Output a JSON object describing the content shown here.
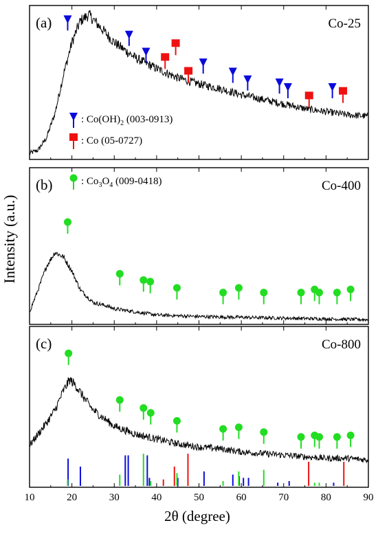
{
  "chart_data": {
    "type": "line",
    "xlabel": "2θ (degree)",
    "ylabel": "Intensity (a.u.)",
    "xlim": [
      10,
      90
    ],
    "x_ticks": [
      10,
      20,
      30,
      40,
      50,
      60,
      70,
      80,
      90
    ],
    "colors": {
      "CoOH2": "#0a0adc",
      "Co": "#ee1111",
      "Co3O4": "#22dd22",
      "trace": "#000000"
    },
    "panels": [
      {
        "label": "(a)",
        "sample": "Co-25",
        "series": [
          {
            "x": [
              10,
              12,
              14,
              16,
              18,
              20,
              22,
              24,
              26,
              30,
              35,
              40,
              45,
              50,
              55,
              60,
              65,
              70,
              75,
              80,
              85,
              90
            ],
            "y": [
              0.04,
              0.06,
              0.14,
              0.3,
              0.55,
              0.76,
              0.9,
              0.94,
              0.88,
              0.76,
              0.66,
              0.59,
              0.53,
              0.49,
              0.46,
              0.42,
              0.39,
              0.36,
              0.33,
              0.31,
              0.29,
              0.28
            ]
          }
        ],
        "markers": [
          {
            "phase": "Co(OH)2",
            "x": 19.0,
            "h": 0.9
          },
          {
            "phase": "Co(OH)2",
            "x": 33.5,
            "h": 0.8
          },
          {
            "phase": "Co(OH)2",
            "x": 37.5,
            "h": 0.69
          },
          {
            "phase": "Co",
            "x": 42.0,
            "h": 0.65
          },
          {
            "phase": "Co",
            "x": 44.5,
            "h": 0.74
          },
          {
            "phase": "Co",
            "x": 47.5,
            "h": 0.56
          },
          {
            "phase": "Co(OH)2",
            "x": 51.0,
            "h": 0.62
          },
          {
            "phase": "Co(OH)2",
            "x": 58.0,
            "h": 0.56
          },
          {
            "phase": "Co(OH)2",
            "x": 61.5,
            "h": 0.51
          },
          {
            "phase": "Co(OH)2",
            "x": 69.0,
            "h": 0.49
          },
          {
            "phase": "Co(OH)2",
            "x": 71.0,
            "h": 0.46
          },
          {
            "phase": "Co",
            "x": 76.0,
            "h": 0.4
          },
          {
            "phase": "Co(OH)2",
            "x": 81.5,
            "h": 0.46
          },
          {
            "phase": "Co",
            "x": 84.0,
            "h": 0.43
          }
        ],
        "legend": [
          {
            "phase": "Co(OH)2",
            "text": ": Co(OH)",
            "sub": "2",
            "rest": " (003-0913)"
          },
          {
            "phase": "Co",
            "text": ": Co (05-0727)",
            "sub": "",
            "rest": ""
          }
        ]
      },
      {
        "label": "(b)",
        "sample": "Co-400",
        "series": [
          {
            "x": [
              10,
              12,
              14,
              16,
              18,
              20,
              22,
              25,
              28,
              30,
              35,
              40,
              50,
              60,
              70,
              80,
              90
            ],
            "y": [
              0.08,
              0.22,
              0.37,
              0.46,
              0.43,
              0.34,
              0.22,
              0.14,
              0.12,
              0.1,
              0.08,
              0.06,
              0.05,
              0.045,
              0.04,
              0.035,
              0.03
            ]
          }
        ],
        "markers": [
          {
            "phase": "Co3O4",
            "x": 19.0,
            "h": 0.64
          },
          {
            "phase": "Co3O4",
            "x": 31.3,
            "h": 0.31
          },
          {
            "phase": "Co3O4",
            "x": 36.9,
            "h": 0.27
          },
          {
            "phase": "Co3O4",
            "x": 38.5,
            "h": 0.26
          },
          {
            "phase": "Co3O4",
            "x": 44.8,
            "h": 0.22
          },
          {
            "phase": "Co3O4",
            "x": 55.7,
            "h": 0.19
          },
          {
            "phase": "Co3O4",
            "x": 59.4,
            "h": 0.22
          },
          {
            "phase": "Co3O4",
            "x": 65.3,
            "h": 0.19
          },
          {
            "phase": "Co3O4",
            "x": 74.1,
            "h": 0.19
          },
          {
            "phase": "Co3O4",
            "x": 77.3,
            "h": 0.21
          },
          {
            "phase": "Co3O4",
            "x": 78.4,
            "h": 0.19
          },
          {
            "phase": "Co3O4",
            "x": 82.6,
            "h": 0.19
          },
          {
            "phase": "Co3O4",
            "x": 85.8,
            "h": 0.21
          }
        ],
        "legend": [
          {
            "phase": "Co3O4",
            "text": ": Co",
            "sub": "3",
            "mid": "O",
            "sub2": "4",
            "rest": " (009-0418)"
          }
        ]
      },
      {
        "label": "(c)",
        "sample": "Co-800",
        "series": [
          {
            "x": [
              10,
              12,
              14,
              16,
              18,
              19.5,
              21,
              23,
              25,
              28,
              30,
              35,
              40,
              45,
              50,
              55,
              60,
              65,
              70,
              75,
              80,
              85,
              90
            ],
            "y": [
              0.26,
              0.33,
              0.4,
              0.48,
              0.6,
              0.67,
              0.63,
              0.55,
              0.48,
              0.42,
              0.38,
              0.33,
              0.3,
              0.27,
              0.25,
              0.24,
              0.22,
              0.21,
              0.2,
              0.19,
              0.18,
              0.18,
              0.17
            ]
          }
        ],
        "markers": [
          {
            "phase": "Co3O4",
            "x": 19.2,
            "h": 0.82
          },
          {
            "phase": "Co3O4",
            "x": 31.3,
            "h": 0.53
          },
          {
            "phase": "Co3O4",
            "x": 36.9,
            "h": 0.48
          },
          {
            "phase": "Co3O4",
            "x": 38.6,
            "h": 0.45
          },
          {
            "phase": "Co3O4",
            "x": 44.8,
            "h": 0.4
          },
          {
            "phase": "Co3O4",
            "x": 55.7,
            "h": 0.35
          },
          {
            "phase": "Co3O4",
            "x": 59.4,
            "h": 0.36
          },
          {
            "phase": "Co3O4",
            "x": 65.3,
            "h": 0.33
          },
          {
            "phase": "Co3O4",
            "x": 74.1,
            "h": 0.3
          },
          {
            "phase": "Co3O4",
            "x": 77.3,
            "h": 0.31
          },
          {
            "phase": "Co3O4",
            "x": 78.4,
            "h": 0.3
          },
          {
            "phase": "Co3O4",
            "x": 82.6,
            "h": 0.3
          },
          {
            "phase": "Co3O4",
            "x": 85.8,
            "h": 0.31
          }
        ],
        "reference_lines": [
          {
            "phase": "Co(OH)2",
            "x": 19.1,
            "h": 0.17
          },
          {
            "phase": "Co(OH)2",
            "x": 22.0,
            "h": 0.12
          },
          {
            "phase": "Co(OH)2",
            "x": 32.6,
            "h": 0.19
          },
          {
            "phase": "Co(OH)2",
            "x": 33.3,
            "h": 0.19
          },
          {
            "phase": "Co(OH)2",
            "x": 37.8,
            "h": 0.19
          },
          {
            "phase": "Co(OH)2",
            "x": 38.3,
            "h": 0.05
          },
          {
            "phase": "Co(OH)2",
            "x": 45.0,
            "h": 0.05
          },
          {
            "phase": "Co(OH)2",
            "x": 51.2,
            "h": 0.09
          },
          {
            "phase": "Co(OH)2",
            "x": 58.0,
            "h": 0.07
          },
          {
            "phase": "Co(OH)2",
            "x": 59.5,
            "h": 0.06
          },
          {
            "phase": "Co(OH)2",
            "x": 60.5,
            "h": 0.05
          },
          {
            "phase": "Co(OH)2",
            "x": 61.7,
            "h": 0.05
          },
          {
            "phase": "Co(OH)2",
            "x": 68.6,
            "h": 0.02
          },
          {
            "phase": "Co(OH)2",
            "x": 71.3,
            "h": 0.03
          },
          {
            "phase": "Co(OH)2",
            "x": 81.8,
            "h": 0.02
          },
          {
            "phase": "Co",
            "x": 41.6,
            "h": 0.04
          },
          {
            "phase": "Co",
            "x": 44.2,
            "h": 0.12
          },
          {
            "phase": "Co",
            "x": 47.4,
            "h": 0.2
          },
          {
            "phase": "Co",
            "x": 75.9,
            "h": 0.15
          },
          {
            "phase": "Co",
            "x": 84.2,
            "h": 0.15
          },
          {
            "phase": "Co3O4",
            "x": 19.0,
            "h": 0.04
          },
          {
            "phase": "Co3O4",
            "x": 31.3,
            "h": 0.07
          },
          {
            "phase": "Co3O4",
            "x": 36.9,
            "h": 0.2
          },
          {
            "phase": "Co3O4",
            "x": 38.6,
            "h": 0.03
          },
          {
            "phase": "Co3O4",
            "x": 44.8,
            "h": 0.08
          },
          {
            "phase": "Co3O4",
            "x": 55.7,
            "h": 0.03
          },
          {
            "phase": "Co3O4",
            "x": 59.4,
            "h": 0.09
          },
          {
            "phase": "Co3O4",
            "x": 65.3,
            "h": 0.1
          },
          {
            "phase": "Co3O4",
            "x": 77.3,
            "h": 0.02
          },
          {
            "phase": "Co3O4",
            "x": 78.4,
            "h": 0.02
          }
        ]
      }
    ]
  }
}
